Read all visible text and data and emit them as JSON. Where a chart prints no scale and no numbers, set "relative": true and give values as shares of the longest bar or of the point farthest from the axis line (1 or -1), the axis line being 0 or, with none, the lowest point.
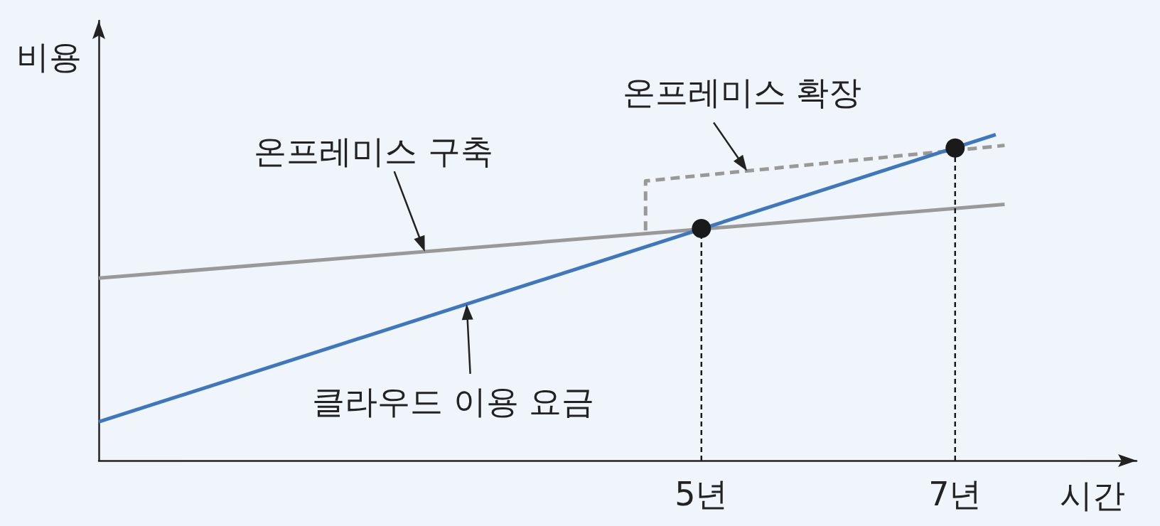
{
  "chart_data": {
    "type": "line",
    "relative": true,
    "xlabel": "시간",
    "ylabel": "비용",
    "xlim": [
      0.25,
      8.43
    ],
    "xticks": [
      {
        "value": 5,
        "label": "5년"
      },
      {
        "value": 7,
        "label": "7년"
      }
    ],
    "tick_labels": "x",
    "series": [
      {
        "color": "#999999",
        "x": [
          0.25,
          7.39
        ],
        "values": [
          0.56,
          0.786
        ],
        "line_style": "solid",
        "marker": "none"
      },
      {
        "color": "#999999",
        "x": [
          4.56,
          4.56,
          7.39
        ],
        "values": [
          0.706,
          0.858,
          0.967
        ],
        "line_style": "dashed",
        "marker": "none"
      },
      {
        "color": "#3f77bf",
        "x": [
          0.25,
          7.32
        ],
        "values": [
          0.119,
          1
        ],
        "line_style": "solid",
        "marker": "none"
      },
      {
        "type": "lollipop",
        "color": "#1a1a1a",
        "x": [
          5,
          7
        ],
        "values": [
          0.712,
          0.959
        ],
        "marker": "circle",
        "line_style": "dashed"
      }
    ],
    "annotations": [
      {
        "text": "온프레미스 구축",
        "x": 2.82,
        "y": 0.641
      },
      {
        "text": "온프레미스 확장",
        "x": 5.36,
        "y": 0.889
      },
      {
        "text": "클라우드 이용 요금",
        "x": 3.15,
        "y": 0.48
      }
    ]
  }
}
